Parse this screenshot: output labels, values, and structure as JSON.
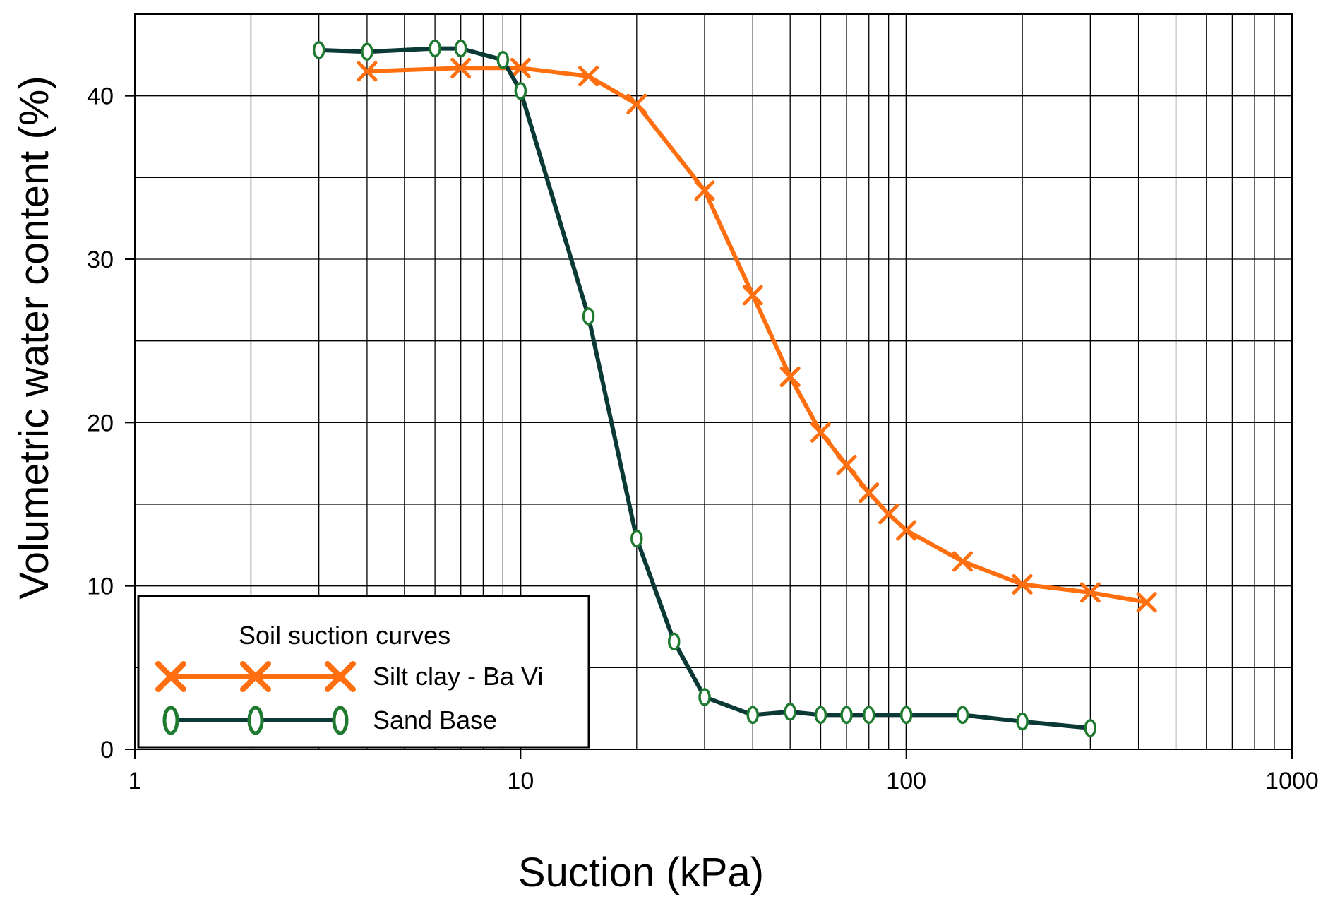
{
  "chart_data": {
    "type": "line",
    "xscale": "log",
    "xlim": [
      1,
      1000
    ],
    "ylim": [
      0,
      45
    ],
    "xlabel": "Suction (kPa)",
    "ylabel": "Volumetric water content (%)",
    "xticks": [
      "1",
      "10",
      "100",
      "1000"
    ],
    "yticks": [
      "0",
      "10",
      "20",
      "30",
      "40"
    ],
    "grid": true,
    "legend": {
      "title": "Soil suction curves",
      "position": "bottom-left"
    },
    "series": [
      {
        "name": "Silt clay - Ba Vi",
        "color": "#FF6F0F",
        "marker": "x-marker",
        "points": [
          {
            "x": 4,
            "y": 41.5
          },
          {
            "x": 7,
            "y": 41.7
          },
          {
            "x": 10,
            "y": 41.7
          },
          {
            "x": 15,
            "y": 41.2
          },
          {
            "x": 20,
            "y": 39.5
          },
          {
            "x": 30,
            "y": 34.2
          },
          {
            "x": 40,
            "y": 27.8
          },
          {
            "x": 50,
            "y": 22.8
          },
          {
            "x": 60,
            "y": 19.4
          },
          {
            "x": 70,
            "y": 17.4
          },
          {
            "x": 80,
            "y": 15.7
          },
          {
            "x": 90,
            "y": 14.4
          },
          {
            "x": 100,
            "y": 13.4
          },
          {
            "x": 140,
            "y": 11.5
          },
          {
            "x": 200,
            "y": 10.1
          },
          {
            "x": 300,
            "y": 9.6
          },
          {
            "x": 420,
            "y": 9.0
          }
        ]
      },
      {
        "name": "Sand Base",
        "color": "#0B3A36",
        "marker_color": "#1E7A2E",
        "marker": "o-marker",
        "points": [
          {
            "x": 3,
            "y": 42.8
          },
          {
            "x": 4,
            "y": 42.7
          },
          {
            "x": 6,
            "y": 42.9
          },
          {
            "x": 7,
            "y": 42.9
          },
          {
            "x": 9,
            "y": 42.2
          },
          {
            "x": 10,
            "y": 40.3
          },
          {
            "x": 15,
            "y": 26.5
          },
          {
            "x": 20,
            "y": 12.9
          },
          {
            "x": 25,
            "y": 6.6
          },
          {
            "x": 30,
            "y": 3.2
          },
          {
            "x": 40,
            "y": 2.1
          },
          {
            "x": 50,
            "y": 2.3
          },
          {
            "x": 60,
            "y": 2.1
          },
          {
            "x": 70,
            "y": 2.1
          },
          {
            "x": 80,
            "y": 2.1
          },
          {
            "x": 100,
            "y": 2.1
          },
          {
            "x": 140,
            "y": 2.1
          },
          {
            "x": 200,
            "y": 1.7
          },
          {
            "x": 300,
            "y": 1.3
          }
        ]
      }
    ]
  }
}
